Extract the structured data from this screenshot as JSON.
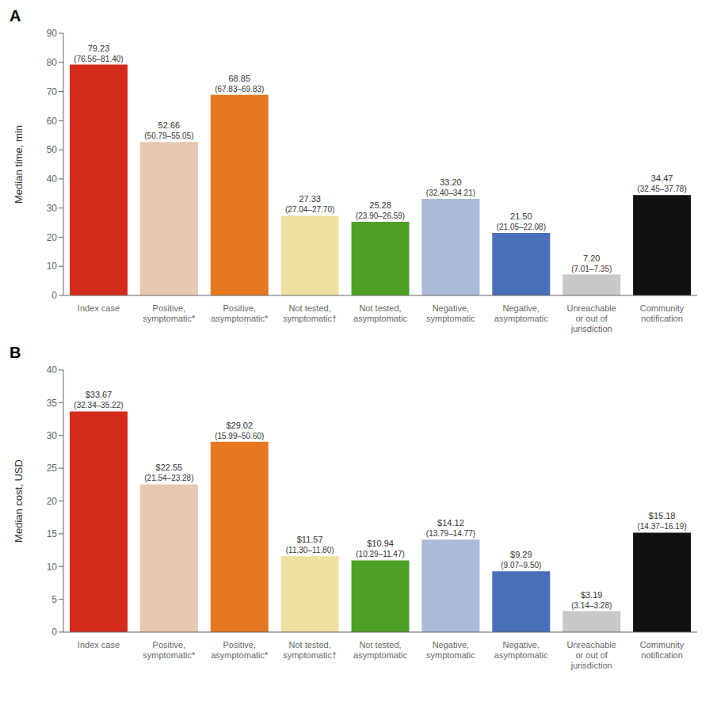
{
  "chart_data": [
    {
      "type": "bar",
      "title": "A",
      "categories": [
        "Index case",
        "Positive,\nsymptomatic*",
        "Positive,\nasymptomatic*",
        "Not tested,\nsymptomatic†",
        "Not tested,\nasymptomatic",
        "Negative,\nsymptomatic",
        "Negative,\nasymptomatic",
        "Unreachable\nor out of\njurisdiction",
        "Community\nnotification"
      ],
      "values": [
        79.23,
        52.66,
        68.85,
        27.33,
        25.28,
        33.2,
        21.5,
        7.2,
        34.47
      ],
      "value_labels": [
        "79.23",
        "52.66",
        "68.85",
        "27.33",
        "25.28",
        "33.20",
        "21.50",
        "7.20",
        "34.47"
      ],
      "ci_labels": [
        "(76.56–81.40)",
        "(50.79–55.05)",
        "(67.83–69.83)",
        "(27.04–27.70)",
        "(23.90–26.59)",
        "(32.40–34.21)",
        "(21.05–22.08)",
        "(7.01–7.35)",
        "(32.45–37.78)"
      ],
      "colors": [
        "#D42B1A",
        "#E8C8B0",
        "#E87820",
        "#EDE0A0",
        "#4EA025",
        "#AABBDA",
        "#4870B8",
        "#C8C8C8",
        "#111111"
      ],
      "ylabel": "Median time, min",
      "ylim": [
        0,
        90
      ],
      "yticks": [
        0,
        10,
        20,
        30,
        40,
        50,
        60,
        70,
        80,
        90
      ],
      "grid": false,
      "data_labels": true
    },
    {
      "type": "bar",
      "title": "B",
      "categories": [
        "Index case",
        "Positive,\nsymptomatic*",
        "Positive,\nasymptomatic*",
        "Not tested,\nsymptomatic†",
        "Not tested,\nasymptomatic",
        "Negative,\nsymptomatic",
        "Negative,\nasymptomatic",
        "Unreachable\nor out of\njurisdiction",
        "Community\nnotification"
      ],
      "values": [
        33.67,
        22.55,
        29.02,
        11.57,
        10.94,
        14.12,
        9.29,
        3.19,
        15.18
      ],
      "value_labels": [
        "$33.67",
        "$22.55",
        "$29.02",
        "$11.57",
        "$10.94",
        "$14.12",
        "$9.29",
        "$3.19",
        "$15.18"
      ],
      "ci_labels": [
        "(32.34–35.22)",
        "(21.54–23.28)",
        "(15.99–50.60)",
        "(11.30–11.80)",
        "(10.29–11.47)",
        "(13.79–14.77)",
        "(9.07–9.50)",
        "(3.14–3.28)",
        "(14.37–16.19)"
      ],
      "colors": [
        "#D42B1A",
        "#E8C8B0",
        "#E87820",
        "#EDE0A0",
        "#4EA025",
        "#AABBDA",
        "#4870B8",
        "#C8C8C8",
        "#111111"
      ],
      "ylabel": "Median cost, USD",
      "ylim": [
        0,
        40
      ],
      "yticks": [
        0,
        5,
        10,
        15,
        20,
        25,
        30,
        35,
        40
      ],
      "grid": false,
      "data_labels": true
    }
  ]
}
